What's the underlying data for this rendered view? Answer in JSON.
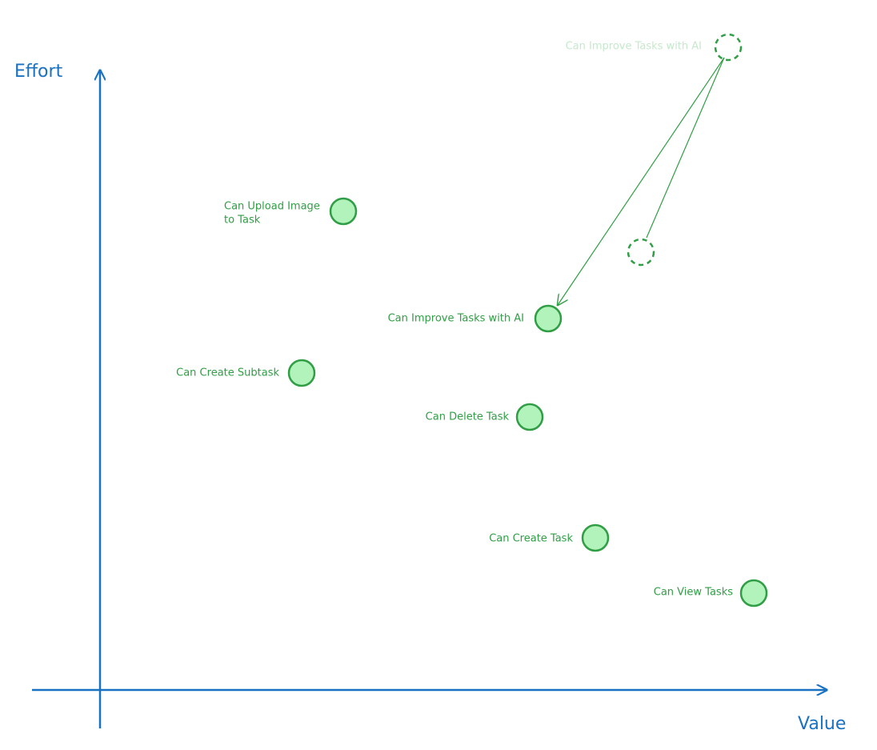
{
  "axes": {
    "y_label": "Effort",
    "x_label": "Value"
  },
  "nodes": [
    {
      "label": [
        "Can Upload Image",
        "to Task"
      ]
    },
    {
      "label": [
        "Can Improve Tasks with AI"
      ]
    },
    {
      "label": [
        "Can Create Subtask"
      ]
    },
    {
      "label": [
        "Can Delete Task"
      ]
    },
    {
      "label": [
        "Can Create Task"
      ]
    },
    {
      "label": [
        "Can View Tasks"
      ]
    }
  ],
  "previous_position": {
    "label": "Can Improve Tasks with AI"
  }
}
